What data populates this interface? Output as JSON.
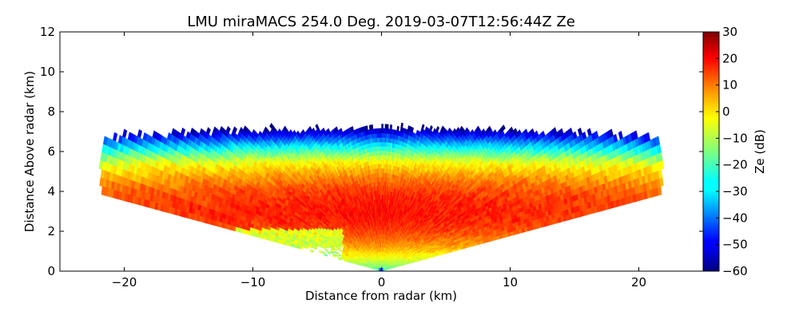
{
  "chart_data": {
    "type": "heatmap",
    "title": "LMU miraMACS 254.0 Deg. 2019-03-07T12:56:44Z  Ze",
    "xlabel": "Distance from radar (km)",
    "ylabel": "Distance Above radar  (km)",
    "xlim": [
      -25,
      25
    ],
    "ylim": [
      0,
      12
    ],
    "xticks": [
      -20,
      -10,
      0,
      10,
      20
    ],
    "xtick_labels": [
      "−20",
      "−10",
      "0",
      "10",
      "20"
    ],
    "yticks": [
      0,
      2,
      4,
      6,
      8,
      10,
      12
    ],
    "ytick_labels": [
      "0",
      "2",
      "4",
      "6",
      "8",
      "10",
      "12"
    ],
    "colorbar": {
      "label": "Ze (dB)",
      "range": [
        -60,
        30
      ],
      "ticks": [
        30,
        20,
        10,
        0,
        -10,
        -20,
        -30,
        -40,
        -50,
        -60
      ],
      "tick_labels": [
        "30",
        "20",
        "10",
        "0",
        "−10",
        "−20",
        "−30",
        "−40",
        "−50",
        "−60"
      ],
      "colormap": "jet"
    },
    "scan": {
      "elevation_deg_min": 10,
      "elevation_deg_max": 170,
      "echo_top_km": [
        6.8,
        7.0,
        7.1,
        7.1,
        7.2,
        7.1,
        7.0,
        6.8
      ],
      "echo_top_x_km": [
        -21,
        -15,
        -10,
        -5,
        0,
        5,
        12,
        21
      ],
      "core_height_km": 3.0,
      "core_max_dbz": 18
    }
  },
  "colors": {
    "frame": "#000000",
    "background": "#ffffff"
  }
}
